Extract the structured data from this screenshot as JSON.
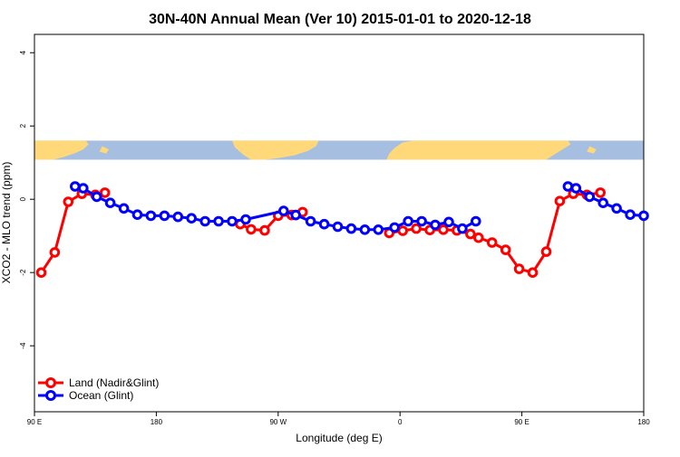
{
  "chart_data": {
    "type": "line",
    "title": "30N-40N Annual Mean (Ver 10)   2015-01-01 to 2020-12-18",
    "xlabel": "Longitude (deg E)",
    "ylabel": "XCO2 - MLO trend (ppm)",
    "xlim": [
      90,
      540
    ],
    "ylim": [
      -5.8,
      4.5
    ],
    "x_ticks": [
      90,
      180,
      270,
      360,
      450,
      540
    ],
    "x_tick_labels": [
      "90 E",
      "180",
      "90 W",
      "0",
      "90 E",
      "180"
    ],
    "y_ticks": [
      -4,
      -2,
      0,
      2,
      4
    ],
    "y_tick_labels": [
      "-4",
      "-2",
      "0",
      "2",
      "4"
    ],
    "grid": false,
    "legend_position": "bottom-left",
    "map_band": {
      "y_range": [
        1.08,
        1.6
      ],
      "ocean_color": "#a6bedf",
      "land_color": "#ffd87a"
    },
    "series": [
      {
        "name": "Land (Nadir&Glint)",
        "color": "#ff0000",
        "x": [
          95,
          105,
          115,
          125,
          135,
          142,
          242,
          250,
          260,
          270,
          280,
          288,
          352,
          362,
          372,
          382,
          392,
          402,
          412,
          418,
          428,
          438,
          448,
          458,
          468,
          478,
          488,
          498,
          508
        ],
        "y": [
          -2.0,
          -1.45,
          -0.07,
          0.15,
          0.12,
          0.18,
          -0.68,
          -0.82,
          -0.85,
          -0.45,
          -0.43,
          -0.35,
          -0.92,
          -0.86,
          -0.8,
          -0.84,
          -0.83,
          -0.85,
          -0.95,
          -1.05,
          -1.18,
          -1.38,
          -1.9,
          -2.0,
          -1.43,
          -0.05,
          0.15,
          0.12,
          0.18
        ]
      },
      {
        "name": "Ocean (Glint)",
        "color": "#0000ff",
        "x": [
          120,
          126,
          136,
          146,
          156,
          166,
          176,
          186,
          196,
          206,
          216,
          226,
          236,
          246,
          274,
          283,
          294,
          304,
          314,
          324,
          334,
          344,
          356,
          366,
          376,
          386,
          396,
          406,
          416,
          484,
          490,
          500,
          510,
          520,
          530,
          540
        ],
        "y": [
          0.35,
          0.3,
          0.07,
          -0.1,
          -0.25,
          -0.42,
          -0.45,
          -0.45,
          -0.48,
          -0.52,
          -0.6,
          -0.6,
          -0.6,
          -0.55,
          -0.32,
          -0.43,
          -0.6,
          -0.68,
          -0.75,
          -0.8,
          -0.83,
          -0.83,
          -0.77,
          -0.6,
          -0.6,
          -0.7,
          -0.62,
          -0.8,
          -0.6,
          0.35,
          0.3,
          0.07,
          -0.1,
          -0.25,
          -0.42,
          -0.45
        ]
      }
    ]
  }
}
